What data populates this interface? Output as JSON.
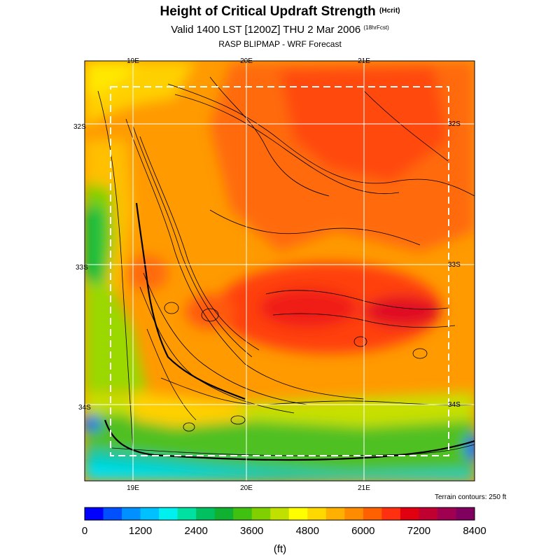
{
  "header": {
    "title": "Height of Critical Updraft Strength",
    "title_units": "(Hcrit)",
    "valid": "Valid 1400 LST [1200Z] THU 2 Mar 2006",
    "forecast_hours": "(18hrFcst)",
    "source": "RASP BLIPMAP - WRF Forecast"
  },
  "map": {
    "top_lon_labels": [
      "19E",
      "20E",
      "21E"
    ],
    "bottom_lon_labels": [
      "19E",
      "20E",
      "21E"
    ],
    "left_lat_labels": [
      "32S",
      "33S",
      "34S"
    ],
    "right_lat_labels": [
      "32S",
      "33S",
      "34S"
    ],
    "terrain_note": "Terrain contours: 250 ft"
  },
  "colorbar": {
    "colors": [
      "#0000ff",
      "#0050ff",
      "#0090ff",
      "#00c0ff",
      "#00f0f0",
      "#00e0a0",
      "#00c060",
      "#10b030",
      "#40c010",
      "#80d000",
      "#c0e000",
      "#ffff00",
      "#ffd800",
      "#ffb000",
      "#ff8c00",
      "#ff6000",
      "#ff3010",
      "#e00010",
      "#c00030",
      "#a00050",
      "#800060"
    ],
    "labels": [
      "0",
      "1200",
      "2400",
      "3600",
      "4800",
      "6000",
      "7200",
      "8400"
    ],
    "units": "(ft)"
  }
}
